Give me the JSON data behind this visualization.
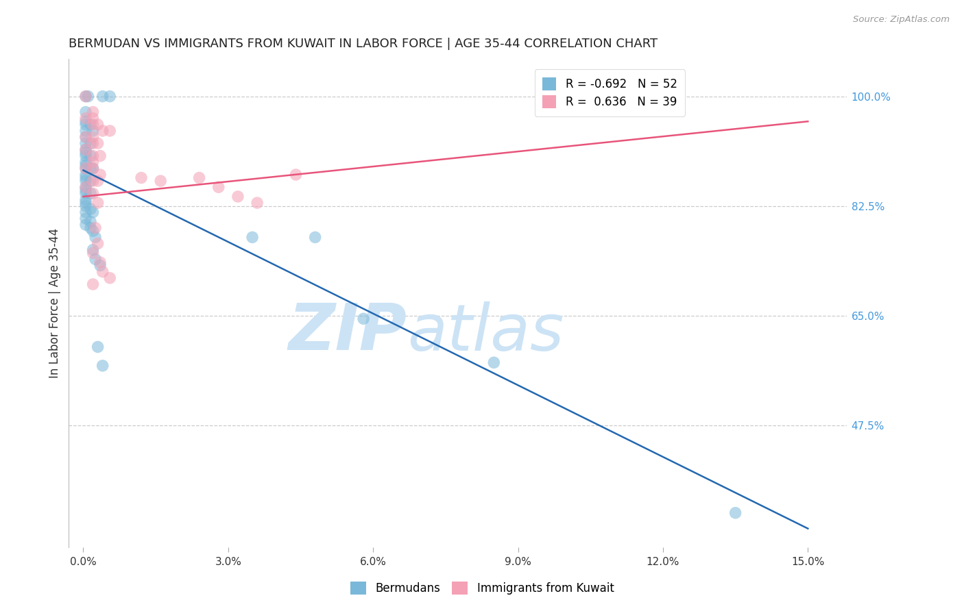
{
  "title": "BERMUDAN VS IMMIGRANTS FROM KUWAIT IN LABOR FORCE | AGE 35-44 CORRELATION CHART",
  "source": "Source: ZipAtlas.com",
  "xlabel_ticks": [
    "0.0%",
    "3.0%",
    "6.0%",
    "9.0%",
    "12.0%",
    "15.0%"
  ],
  "xlabel_vals": [
    0.0,
    3.0,
    6.0,
    9.0,
    12.0,
    15.0
  ],
  "ylabel": "In Labor Force | Age 35-44",
  "ylabel_ticks_right": [
    "100.0%",
    "82.5%",
    "65.0%",
    "47.5%"
  ],
  "ylabel_vals_right": [
    1.0,
    0.825,
    0.65,
    0.475
  ],
  "ylim": [
    0.28,
    1.06
  ],
  "xlim": [
    -0.3,
    15.8
  ],
  "blue_R": -0.692,
  "blue_N": 52,
  "pink_R": 0.636,
  "pink_N": 39,
  "blue_color": "#7ab8d9",
  "pink_color": "#f4a0b5",
  "blue_line_color": "#2368b0",
  "pink_line_color": "#e8547a",
  "blue_scatter": [
    [
      0.05,
      1.0
    ],
    [
      0.1,
      1.0
    ],
    [
      0.4,
      1.0
    ],
    [
      0.55,
      1.0
    ],
    [
      0.05,
      0.975
    ],
    [
      0.05,
      0.96
    ],
    [
      0.05,
      0.955
    ],
    [
      0.15,
      0.955
    ],
    [
      0.05,
      0.945
    ],
    [
      0.2,
      0.945
    ],
    [
      0.05,
      0.935
    ],
    [
      0.05,
      0.925
    ],
    [
      0.15,
      0.925
    ],
    [
      0.05,
      0.915
    ],
    [
      0.05,
      0.91
    ],
    [
      0.05,
      0.905
    ],
    [
      0.15,
      0.905
    ],
    [
      0.05,
      0.895
    ],
    [
      0.05,
      0.89
    ],
    [
      0.05,
      0.885
    ],
    [
      0.15,
      0.885
    ],
    [
      0.2,
      0.885
    ],
    [
      0.05,
      0.875
    ],
    [
      0.05,
      0.87
    ],
    [
      0.05,
      0.865
    ],
    [
      0.15,
      0.865
    ],
    [
      0.05,
      0.855
    ],
    [
      0.05,
      0.85
    ],
    [
      0.05,
      0.845
    ],
    [
      0.15,
      0.845
    ],
    [
      0.05,
      0.835
    ],
    [
      0.05,
      0.83
    ],
    [
      0.05,
      0.825
    ],
    [
      0.15,
      0.82
    ],
    [
      0.05,
      0.815
    ],
    [
      0.2,
      0.815
    ],
    [
      0.05,
      0.805
    ],
    [
      0.15,
      0.8
    ],
    [
      0.05,
      0.795
    ],
    [
      0.15,
      0.79
    ],
    [
      0.2,
      0.785
    ],
    [
      0.25,
      0.775
    ],
    [
      0.2,
      0.755
    ],
    [
      0.25,
      0.74
    ],
    [
      0.35,
      0.73
    ],
    [
      3.5,
      0.775
    ],
    [
      4.8,
      0.775
    ],
    [
      0.3,
      0.6
    ],
    [
      0.4,
      0.57
    ],
    [
      5.8,
      0.645
    ],
    [
      8.5,
      0.575
    ],
    [
      13.5,
      0.335
    ]
  ],
  "pink_scatter": [
    [
      0.05,
      1.0
    ],
    [
      10.8,
      1.0
    ],
    [
      0.2,
      0.975
    ],
    [
      0.05,
      0.965
    ],
    [
      0.2,
      0.965
    ],
    [
      0.2,
      0.955
    ],
    [
      0.3,
      0.955
    ],
    [
      0.4,
      0.945
    ],
    [
      0.55,
      0.945
    ],
    [
      0.05,
      0.935
    ],
    [
      0.2,
      0.935
    ],
    [
      0.2,
      0.925
    ],
    [
      0.3,
      0.925
    ],
    [
      0.05,
      0.915
    ],
    [
      0.2,
      0.905
    ],
    [
      0.35,
      0.905
    ],
    [
      0.2,
      0.895
    ],
    [
      0.05,
      0.885
    ],
    [
      0.2,
      0.885
    ],
    [
      0.35,
      0.875
    ],
    [
      0.2,
      0.865
    ],
    [
      0.3,
      0.865
    ],
    [
      0.05,
      0.855
    ],
    [
      0.2,
      0.845
    ],
    [
      0.3,
      0.83
    ],
    [
      1.2,
      0.87
    ],
    [
      1.6,
      0.865
    ],
    [
      2.4,
      0.87
    ],
    [
      2.8,
      0.855
    ],
    [
      3.2,
      0.84
    ],
    [
      3.6,
      0.83
    ],
    [
      4.4,
      0.875
    ],
    [
      0.25,
      0.79
    ],
    [
      0.3,
      0.765
    ],
    [
      0.2,
      0.75
    ],
    [
      0.35,
      0.735
    ],
    [
      0.4,
      0.72
    ],
    [
      0.55,
      0.71
    ],
    [
      0.2,
      0.7
    ]
  ],
  "blue_line_x": [
    0.0,
    15.0
  ],
  "blue_line_y": [
    0.882,
    0.31
  ],
  "pink_line_x": [
    0.0,
    15.0
  ],
  "pink_line_y": [
    0.84,
    0.96
  ],
  "watermark_zip": "ZIP",
  "watermark_atlas": "atlas",
  "watermark_color": "#cce3f5",
  "background_color": "#ffffff",
  "grid_color": "#cccccc",
  "title_fontsize": 13,
  "axis_label_fontsize": 12,
  "tick_fontsize": 11,
  "legend_fontsize": 12
}
